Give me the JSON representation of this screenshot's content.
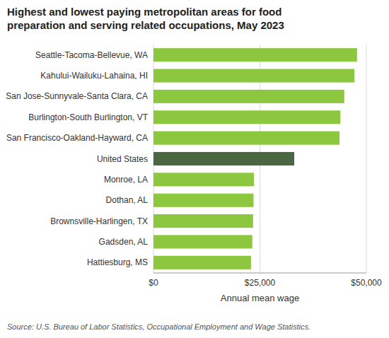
{
  "chart_data": {
    "type": "bar",
    "orientation": "horizontal",
    "title": "Highest and lowest paying metropolitan areas for food\npreparation and serving related occupations, May 2023",
    "categories": [
      "Seattle-Tacoma-Bellevue, WA",
      "Kahului-Wailuku-Lahaina, HI",
      "San Jose-Sunnyvale-Santa Clara, CA",
      "Burlington-South Burlington, VT",
      "San Francisco-Oakland-Hayward, CA",
      "United States",
      "Monroe, LA",
      "Dothan, AL",
      "Brownsville-Harlingen, TX",
      "Gadsden, AL",
      "Hattiesburg, MS"
    ],
    "values": [
      47800,
      47200,
      44800,
      43900,
      43700,
      33060,
      23600,
      23500,
      23400,
      23200,
      22900
    ],
    "colors": [
      "#8dc63f",
      "#8dc63f",
      "#8dc63f",
      "#8dc63f",
      "#8dc63f",
      "#4a6741",
      "#8dc63f",
      "#8dc63f",
      "#8dc63f",
      "#8dc63f",
      "#8dc63f"
    ],
    "xlim": [
      0,
      50000
    ],
    "xticks": [
      {
        "value": 0,
        "label": "$0"
      },
      {
        "value": 25000,
        "label": "$25,000"
      },
      {
        "value": 50000,
        "label": "$50,000"
      }
    ],
    "xlabel": "Annual mean wage",
    "annotations": [
      "Source: U.S. Bureau of Labor Statistics, Occupational Employment and Wage Statistics."
    ],
    "grid": true
  }
}
